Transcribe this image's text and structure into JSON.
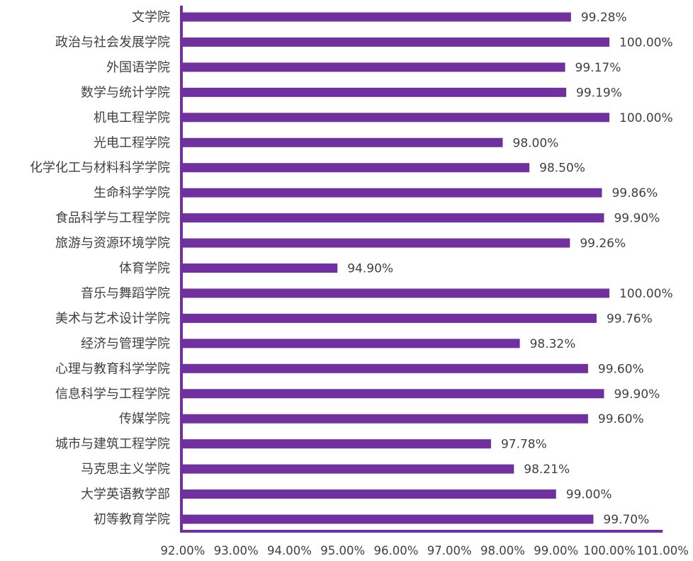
{
  "chart_data": {
    "type": "bar",
    "orientation": "horizontal",
    "categories": [
      "文学院",
      "政治与社会发展学院",
      "外国语学院",
      "数学与统计学院",
      "机电工程学院",
      "光电工程学院",
      "化学化工与材料科学学院",
      "生命科学学院",
      "食品科学与工程学院",
      "旅游与资源环境学院",
      "体育学院",
      "音乐与舞蹈学院",
      "美术与艺术设计学院",
      "经济与管理学院",
      "心理与教育科学学院",
      "信息科学与工程学院",
      "传媒学院",
      "城市与建筑工程学院",
      "马克思主义学院",
      "大学英语教学部",
      "初等教育学院"
    ],
    "values": [
      99.28,
      100.0,
      99.17,
      99.19,
      100.0,
      98.0,
      98.5,
      99.86,
      99.9,
      99.26,
      94.9,
      100.0,
      99.76,
      98.32,
      99.6,
      99.9,
      99.6,
      97.78,
      98.21,
      99.0,
      99.7
    ],
    "data_labels": [
      "99.28%",
      "100.00%",
      "99.17%",
      "99.19%",
      "100.00%",
      "98.00%",
      "98.50%",
      "99.86%",
      "99.90%",
      "99.26%",
      "94.90%",
      "100.00%",
      "99.76%",
      "98.32%",
      "99.60%",
      "99.90%",
      "99.60%",
      "97.78%",
      "98.21%",
      "99.00%",
      "99.70%"
    ],
    "xlim": [
      92,
      101
    ],
    "x_ticks": [
      92,
      93,
      94,
      95,
      96,
      97,
      98,
      99,
      100,
      101
    ],
    "x_tick_labels": [
      "92.00%",
      "93.00%",
      "94.00%",
      "95.00%",
      "96.00%",
      "97.00%",
      "98.00%",
      "99.00%",
      "100.00%",
      "101.00%"
    ],
    "title": "",
    "xlabel": "",
    "ylabel": "",
    "grid": false,
    "legend": "none",
    "colors": {
      "bar": "#7030a0",
      "axis": "#7030a0",
      "text": "#404040"
    }
  }
}
